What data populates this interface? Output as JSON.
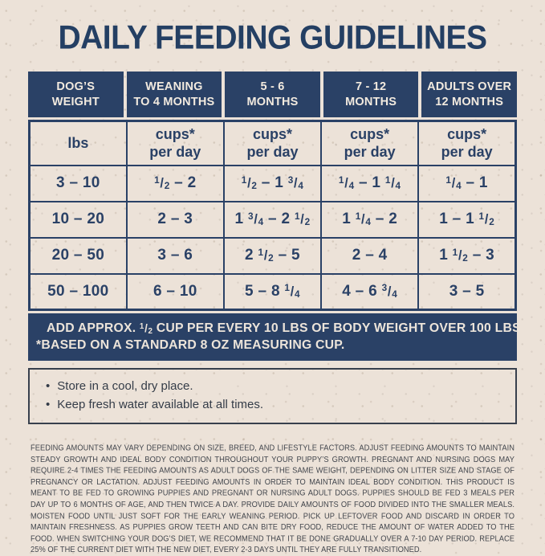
{
  "page": {
    "title": "DAILY FEEDING GUIDELINES"
  },
  "colors": {
    "background": "#ece2d8",
    "navy": "#2a4166",
    "header_text": "#f2eadf",
    "banner_background": "#2a4166",
    "banner_text": "#ece4da",
    "fine_print_text": "#43474e"
  },
  "table": {
    "header": [
      [
        "DOG’S",
        "WEIGHT"
      ],
      [
        "WEANING",
        "TO 4 MONTHS"
      ],
      [
        "5 - 6",
        "MONTHS"
      ],
      [
        "7 - 12",
        "MONTHS"
      ],
      [
        "ADULTS OVER",
        "12 MONTHS"
      ]
    ],
    "unit_row": [
      [
        "lbs"
      ],
      [
        "cups*",
        "per day"
      ],
      [
        "cups*",
        "per day"
      ],
      [
        "cups*",
        "per day"
      ],
      [
        "cups*",
        "per day"
      ]
    ],
    "rows": [
      [
        "3 – 10",
        "1/2 – 2",
        "1/2 – 1 3/4",
        "1/4 – 1 1/4",
        "1/4 – 1"
      ],
      [
        "10 – 20",
        "2 – 3",
        "1 3/4 – 2 1/2",
        "1 1/4 – 2",
        "1 – 1 1/2"
      ],
      [
        "20 – 50",
        "3 – 6",
        "2 1/2 – 5",
        "2 – 4",
        "1 1/2 – 3"
      ],
      [
        "50 – 100",
        "6 – 10",
        "5 – 8 1/4",
        "4 – 6 3/4",
        "3 – 5"
      ]
    ]
  },
  "banner": {
    "line1": "ADD APPROX. 1/2 CUP PER EVERY 10 LBS OF BODY WEIGHT OVER 100 LBS",
    "line2": "*BASED ON A STANDARD 8 OZ MEASURING CUP."
  },
  "notes": {
    "bullets": [
      "Store in a cool, dry place.",
      "Keep fresh water available at all times."
    ]
  },
  "fine_print": "FEEDING AMOUNTS MAY VARY DEPENDING ON SIZE, BREED, AND LIFESTYLE FACTORS. ADJUST FEEDING AMOUNTS TO MAINTAIN STEADY GROWTH AND IDEAL BODY CONDITION THROUGHOUT YOUR PUPPY’S GROWTH. PREGNANT AND NURSING DOGS MAY REQUIRE 2-4 TIMES THE FEEDING AMOUNTS AS ADULT DOGS OF THE SAME WEIGHT, DEPENDING ON LITTER SIZE AND STAGE OF PREGNANCY OR LACTATION. ADJUST FEEDING AMOUNTS IN ORDER TO MAINTAIN IDEAL BODY CONDITION. THIS PRODUCT IS MEANT TO BE FED TO GROWING PUPPIES AND PREGNANT OR NURSING ADULT DOGS. PUPPIES SHOULD BE FED 3 MEALS PER DAY UP TO 6 MONTHS OF AGE, AND THEN TWICE A DAY. PROVIDE DAILY AMOUNTS OF FOOD DIVIDED INTO THE SMALLER MEALS. MOISTEN FOOD UNTIL JUST SOFT FOR THE EARLY WEANING PERIOD. PICK UP LEFTOVER FOOD AND DISCARD IN ORDER TO MAINTAIN FRESHNESS. AS PUPPIES GROW TEETH AND CAN BITE DRY FOOD, REDUCE THE AMOUNT OF WATER ADDED TO THE FOOD. WHEN SWITCHING YOUR DOG’S DIET, WE RECOMMEND THAT IT BE DONE GRADUALLY OVER A 7-10 DAY PERIOD. REPLACE 25% OF THE CURRENT DIET WITH THE NEW DIET, EVERY 2-3 DAYS UNTIL THEY ARE FULLY TRANSITIONED."
}
